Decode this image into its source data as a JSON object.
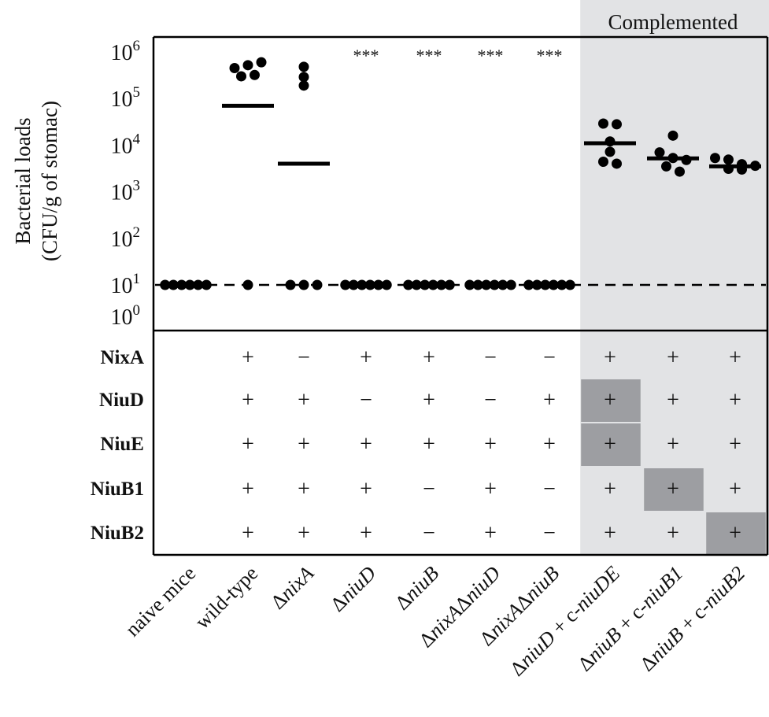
{
  "chart_data": {
    "type": "scatter",
    "panel_label": "Complemented",
    "ylabel_line1": "Bacterial loads",
    "ylabel_line2": "(CFU/g of stomac)",
    "y_scale": "log10",
    "ylim": [
      1,
      1000000
    ],
    "y_ticks": [
      {
        "base": "10",
        "exp": "0"
      },
      {
        "base": "10",
        "exp": "1"
      },
      {
        "base": "10",
        "exp": "2"
      },
      {
        "base": "10",
        "exp": "3"
      },
      {
        "base": "10",
        "exp": "4"
      },
      {
        "base": "10",
        "exp": "5"
      },
      {
        "base": "10",
        "exp": "6"
      }
    ],
    "detection_limit": 10,
    "categories": [
      {
        "label": [
          {
            "t": "naive mice",
            "i": false
          }
        ]
      },
      {
        "label": [
          {
            "t": "wild-type",
            "i": false
          }
        ]
      },
      {
        "label": [
          {
            "t": "Δ",
            "i": false
          },
          {
            "t": "nixA",
            "i": true
          }
        ]
      },
      {
        "label": [
          {
            "t": "Δ",
            "i": false
          },
          {
            "t": "niuD",
            "i": true
          }
        ]
      },
      {
        "label": [
          {
            "t": "Δ",
            "i": false
          },
          {
            "t": "niuB",
            "i": true
          }
        ]
      },
      {
        "label": [
          {
            "t": "Δ",
            "i": false
          },
          {
            "t": "nixA",
            "i": true
          },
          {
            "t": "Δ",
            "i": false
          },
          {
            "t": "niuD",
            "i": true
          }
        ]
      },
      {
        "label": [
          {
            "t": "Δ",
            "i": false
          },
          {
            "t": "nixA",
            "i": true
          },
          {
            "t": "Δ",
            "i": false
          },
          {
            "t": "niuB",
            "i": true
          }
        ]
      },
      {
        "label": [
          {
            "t": "Δ",
            "i": false
          },
          {
            "t": "niuD",
            "i": true
          },
          {
            "t": " + c-",
            "i": false
          },
          {
            "t": "niuDE",
            "i": true
          }
        ]
      },
      {
        "label": [
          {
            "t": "Δ",
            "i": false
          },
          {
            "t": "niuB",
            "i": true
          },
          {
            "t": " + c-",
            "i": false
          },
          {
            "t": "niuB1",
            "i": true
          }
        ]
      },
      {
        "label": [
          {
            "t": "Δ",
            "i": false
          },
          {
            "t": "niuB",
            "i": true
          },
          {
            "t": " + c-",
            "i": false
          },
          {
            "t": "niuB2",
            "i": true
          }
        ]
      }
    ],
    "points": [
      [
        10,
        10,
        10,
        10,
        10,
        10
      ],
      [
        300000,
        450000,
        520000,
        600000,
        320000,
        10
      ],
      [
        480000,
        290000,
        190000,
        10,
        10,
        10
      ],
      [
        10,
        10,
        10,
        10,
        10,
        10
      ],
      [
        10,
        10,
        10,
        10,
        10,
        10
      ],
      [
        10,
        10,
        10,
        10,
        10,
        10
      ],
      [
        10,
        10,
        10,
        10,
        10,
        10
      ],
      [
        29000,
        28000,
        12000,
        7200,
        4400,
        4000
      ],
      [
        16000,
        7000,
        5300,
        4800,
        3500,
        2700
      ],
      [
        5300,
        4900,
        3900,
        3600,
        3100,
        3000
      ]
    ],
    "means": [
      null,
      70000,
      4000,
      null,
      null,
      null,
      null,
      11000,
      5200,
      3500
    ],
    "significance": [
      "",
      "",
      "",
      "***",
      "***",
      "***",
      "***",
      "",
      "",
      ""
    ],
    "complemented_start_index": 7,
    "genotype_table": {
      "rows": [
        "NixA",
        "NiuD",
        "NiuE",
        "NiuB1",
        "NiuB2"
      ],
      "values": [
        [
          "",
          "+",
          "−",
          "+",
          "+",
          "−",
          "−",
          "+",
          "+",
          "+"
        ],
        [
          "",
          "+",
          "+",
          "−",
          "+",
          "−",
          "+",
          "+",
          "+",
          "+"
        ],
        [
          "",
          "+",
          "+",
          "+",
          "+",
          "+",
          "+",
          "+",
          "+",
          "+"
        ],
        [
          "",
          "+",
          "+",
          "+",
          "−",
          "+",
          "−",
          "+",
          "+",
          "+"
        ],
        [
          "",
          "+",
          "+",
          "+",
          "−",
          "+",
          "−",
          "+",
          "+",
          "+"
        ]
      ],
      "highlighted_cells": [
        [
          1,
          7
        ],
        [
          2,
          7
        ],
        [
          3,
          8
        ],
        [
          4,
          9
        ]
      ]
    },
    "colors": {
      "complemented_bg": "#e2e3e5",
      "highlight": "#9d9ea2",
      "ink": "#000000"
    }
  }
}
